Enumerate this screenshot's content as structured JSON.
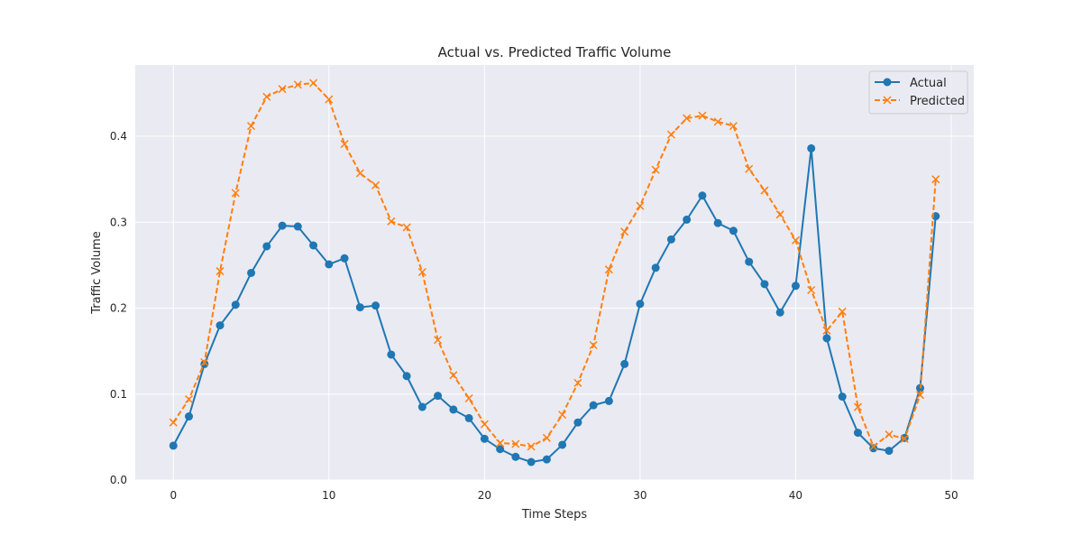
{
  "chart_data": {
    "type": "line",
    "title": "Actual vs. Predicted Traffic Volume",
    "xlabel": "Time Steps",
    "ylabel": "Traffic Volume",
    "xlim": [
      -2.45,
      51.45
    ],
    "ylim": [
      0.0,
      0.483
    ],
    "x_ticks": [
      0,
      10,
      20,
      30,
      40,
      50
    ],
    "y_ticks": [
      0.0,
      0.1,
      0.2,
      0.3,
      0.4
    ],
    "x_tick_labels": [
      "0",
      "10",
      "20",
      "30",
      "40",
      "50"
    ],
    "y_tick_labels": [
      "0.0",
      "0.1",
      "0.2",
      "0.3",
      "0.4"
    ],
    "grid": true,
    "legend_position": "top-right",
    "x": [
      0,
      1,
      2,
      3,
      4,
      5,
      6,
      7,
      8,
      9,
      10,
      11,
      12,
      13,
      14,
      15,
      16,
      17,
      18,
      19,
      20,
      21,
      22,
      23,
      24,
      25,
      26,
      27,
      28,
      29,
      30,
      31,
      32,
      33,
      34,
      35,
      36,
      37,
      38,
      39,
      40,
      41,
      42,
      43,
      44,
      45,
      46,
      47,
      48,
      49
    ],
    "series": [
      {
        "name": "Actual",
        "color": "#1f77b4",
        "marker": "circle",
        "line_style": "solid",
        "values": [
          0.04,
          0.074,
          0.135,
          0.18,
          0.204,
          0.241,
          0.272,
          0.296,
          0.295,
          0.273,
          0.251,
          0.258,
          0.201,
          0.203,
          0.146,
          0.121,
          0.085,
          0.098,
          0.082,
          0.072,
          0.048,
          0.036,
          0.027,
          0.021,
          0.024,
          0.041,
          0.067,
          0.087,
          0.092,
          0.135,
          0.205,
          0.247,
          0.28,
          0.303,
          0.331,
          0.299,
          0.29,
          0.254,
          0.228,
          0.195,
          0.226,
          0.386,
          0.165,
          0.097,
          0.055,
          0.037,
          0.034,
          0.049,
          0.107,
          0.307
        ]
      },
      {
        "name": "Predicted",
        "color": "#ff7f0e",
        "marker": "x",
        "line_style": "dashed",
        "values": [
          0.067,
          0.094,
          0.137,
          0.243,
          0.334,
          0.412,
          0.446,
          0.455,
          0.46,
          0.462,
          0.443,
          0.391,
          0.357,
          0.343,
          0.301,
          0.294,
          0.242,
          0.163,
          0.122,
          0.095,
          0.065,
          0.043,
          0.042,
          0.039,
          0.049,
          0.076,
          0.113,
          0.157,
          0.245,
          0.289,
          0.319,
          0.361,
          0.402,
          0.421,
          0.424,
          0.417,
          0.412,
          0.362,
          0.337,
          0.309,
          0.279,
          0.221,
          0.174,
          0.196,
          0.085,
          0.039,
          0.053,
          0.048,
          0.099,
          0.35
        ]
      }
    ]
  }
}
